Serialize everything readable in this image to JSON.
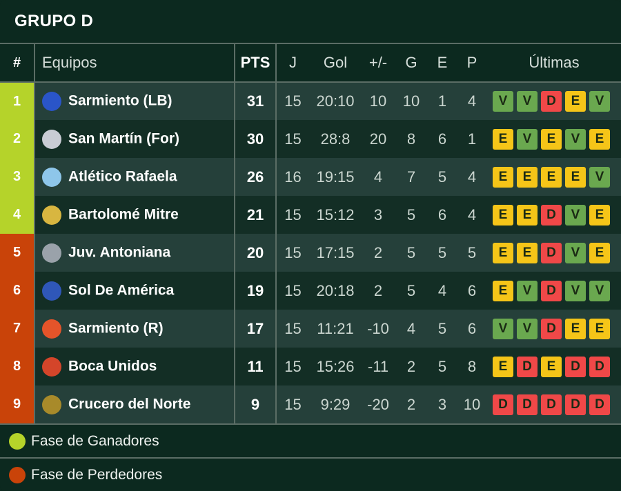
{
  "title": "GRUPO D",
  "colors": {
    "winners": "#b5d32a",
    "losers": "#c94309",
    "V": "#6aa84f",
    "E": "#f5c518",
    "D": "#f04848"
  },
  "headers": {
    "pos": "#",
    "team": "Equipos",
    "pts": "PTS",
    "j": "J",
    "gol": "Gol",
    "diff": "+/-",
    "g": "G",
    "e": "E",
    "p": "P",
    "last": "Últimas"
  },
  "rows": [
    {
      "pos": "1",
      "zone": "winners",
      "team": "Sarmiento (LB)",
      "logo": "#2a55c8",
      "pts": "31",
      "j": "15",
      "gol": "20:10",
      "diff": "10",
      "g": "10",
      "e": "1",
      "p": "4",
      "last": [
        "V",
        "V",
        "D",
        "E",
        "V"
      ]
    },
    {
      "pos": "2",
      "zone": "winners",
      "team": "San Martín (For)",
      "logo": "#c9ccd4",
      "pts": "30",
      "j": "15",
      "gol": "28:8",
      "diff": "20",
      "g": "8",
      "e": "6",
      "p": "1",
      "last": [
        "E",
        "V",
        "E",
        "V",
        "E"
      ]
    },
    {
      "pos": "3",
      "zone": "winners",
      "team": "Atlético Rafaela",
      "logo": "#8ec6ea",
      "pts": "26",
      "j": "16",
      "gol": "19:15",
      "diff": "4",
      "g": "7",
      "e": "5",
      "p": "4",
      "last": [
        "E",
        "E",
        "E",
        "E",
        "V"
      ]
    },
    {
      "pos": "4",
      "zone": "winners",
      "team": "Bartolomé Mitre",
      "logo": "#d8b640",
      "pts": "21",
      "j": "15",
      "gol": "15:12",
      "diff": "3",
      "g": "5",
      "e": "6",
      "p": "4",
      "last": [
        "E",
        "E",
        "D",
        "V",
        "E"
      ]
    },
    {
      "pos": "5",
      "zone": "losers",
      "team": "Juv. Antoniana",
      "logo": "#9aa2aa",
      "pts": "20",
      "j": "15",
      "gol": "17:15",
      "diff": "2",
      "g": "5",
      "e": "5",
      "p": "5",
      "last": [
        "E",
        "E",
        "D",
        "V",
        "E"
      ]
    },
    {
      "pos": "6",
      "zone": "losers",
      "team": "Sol De América",
      "logo": "#2f57b8",
      "pts": "19",
      "j": "15",
      "gol": "20:18",
      "diff": "2",
      "g": "5",
      "e": "4",
      "p": "6",
      "last": [
        "E",
        "V",
        "D",
        "V",
        "V"
      ]
    },
    {
      "pos": "7",
      "zone": "losers",
      "team": "Sarmiento (R)",
      "logo": "#e5542a",
      "pts": "17",
      "j": "15",
      "gol": "11:21",
      "diff": "-10",
      "g": "4",
      "e": "5",
      "p": "6",
      "last": [
        "V",
        "V",
        "D",
        "E",
        "E"
      ]
    },
    {
      "pos": "8",
      "zone": "losers",
      "team": "Boca Unidos",
      "logo": "#d4452a",
      "pts": "11",
      "j": "15",
      "gol": "15:26",
      "diff": "-11",
      "g": "2",
      "e": "5",
      "p": "8",
      "last": [
        "E",
        "D",
        "E",
        "D",
        "D"
      ]
    },
    {
      "pos": "9",
      "zone": "losers",
      "team": "Crucero del Norte",
      "logo": "#a88a2a",
      "pts": "9",
      "j": "15",
      "gol": "9:29",
      "diff": "-20",
      "g": "2",
      "e": "3",
      "p": "10",
      "last": [
        "D",
        "D",
        "D",
        "D",
        "D"
      ]
    }
  ],
  "legend": [
    {
      "label": "Fase de Ganadores",
      "zone": "winners"
    },
    {
      "label": "Fase de Perdedores",
      "zone": "losers"
    }
  ]
}
